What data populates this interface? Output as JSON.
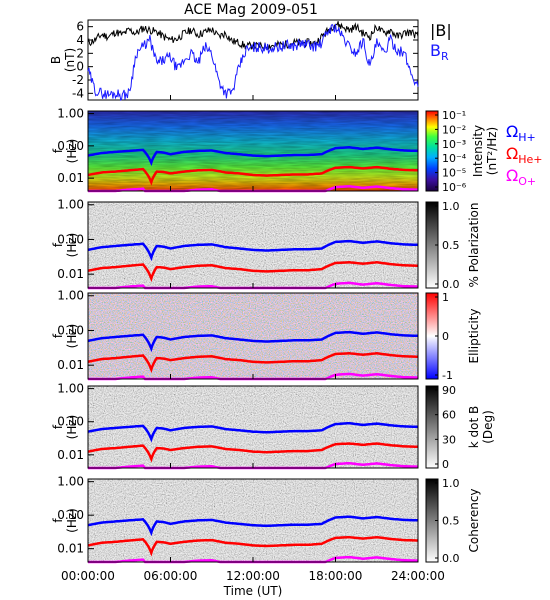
{
  "title": "ACE Mag 2009-051",
  "time_axis": {
    "label": "Time (UT)",
    "ticks": [
      "00:00:00",
      "06:00:00",
      "12:00:00",
      "18:00:00",
      "24:00:00"
    ]
  },
  "colors": {
    "B_total": "#000000",
    "B_R": "#1a1aff",
    "H_plus": "#0000ff",
    "He_plus": "#ff0000",
    "O_plus": "#ff00ff"
  },
  "chart_data": [
    {
      "type": "line",
      "panel": "B",
      "ylabel": "B",
      "yunit": "(nT)",
      "ylim": [
        -5,
        7
      ],
      "yticks": [
        "6",
        "4",
        "2",
        "0",
        "-2",
        "-4"
      ],
      "xlim_hours": [
        0,
        24
      ],
      "legend": [
        "|B|",
        "B_R"
      ],
      "series": [
        {
          "name": "|B|",
          "x": [
            0,
            0.5,
            1,
            1.5,
            2,
            2.5,
            3,
            3.5,
            4,
            4.5,
            5,
            5.5,
            6,
            6.5,
            7,
            7.5,
            8,
            8.5,
            9,
            9.5,
            10,
            10.5,
            11,
            11.5,
            12,
            12.5,
            13,
            13.5,
            14,
            14.5,
            15,
            15.5,
            16,
            16.5,
            17,
            17.5,
            18,
            18.5,
            19,
            19.5,
            20,
            20.5,
            21,
            21.5,
            22,
            22.5,
            23,
            23.5,
            24
          ],
          "values": [
            3.5,
            4.0,
            4.8,
            4.5,
            5.2,
            4.8,
            5.5,
            5.0,
            5.8,
            5.5,
            5.2,
            4.5,
            4.0,
            4.2,
            5.0,
            5.5,
            4.8,
            5.2,
            5.6,
            4.5,
            5.0,
            3.8,
            3.6,
            3.0,
            3.2,
            3.0,
            3.1,
            3.2,
            3.3,
            3.4,
            3.6,
            3.5,
            3.6,
            3.5,
            4.5,
            5.5,
            6.5,
            6.0,
            5.5,
            6.0,
            5.0,
            4.5,
            6.0,
            5.0,
            5.5,
            4.5,
            5.0,
            5.2,
            4.5
          ]
        },
        {
          "name": "B_R",
          "x": [
            0,
            0.5,
            1,
            1.5,
            2,
            2.5,
            3,
            3.5,
            4,
            4.5,
            5,
            5.5,
            6,
            6.5,
            7,
            7.5,
            8,
            8.5,
            9,
            9.5,
            10,
            10.5,
            11,
            11.5,
            12,
            12.5,
            13,
            13.5,
            14,
            14.5,
            15,
            15.5,
            16,
            16.5,
            17,
            17.5,
            18,
            18.5,
            19,
            19.5,
            20,
            20.5,
            21,
            21.5,
            22,
            22.5,
            23,
            23.5,
            24
          ],
          "values": [
            -0.5,
            -3.5,
            -4.0,
            -4.2,
            -4.0,
            -4.3,
            -4.0,
            2.0,
            3.0,
            4.0,
            0.5,
            1.0,
            1.5,
            -0.5,
            1.0,
            2.0,
            0.5,
            3.0,
            2.0,
            -2.0,
            -4.0,
            -3.8,
            0.0,
            2.5,
            2.8,
            3.0,
            2.7,
            2.9,
            3.0,
            3.2,
            3.1,
            3.5,
            3.3,
            3.0,
            3.5,
            5.5,
            6.0,
            4.5,
            3.0,
            2.0,
            4.0,
            0.0,
            3.5,
            2.0,
            4.0,
            2.5,
            2.0,
            -1.0,
            -3.0
          ]
        }
      ]
    },
    {
      "type": "heatmap",
      "panel": "intensity",
      "ylabel": "f",
      "yunit": "(Hz)",
      "yscale": "log",
      "ylim": [
        0.004,
        1.0
      ],
      "yticks": [
        "1.00",
        "0.10",
        "0.01"
      ],
      "colorbar": {
        "label": "Intensity",
        "unit": "(nT²/Hz)",
        "scale": "log",
        "ticks": [
          "10⁻¹",
          "10⁻²",
          "10⁻³",
          "10⁻⁴",
          "10⁻⁵",
          "10⁻⁶"
        ],
        "colors": [
          "#1a0040",
          "#3b0fa0",
          "#0040ff",
          "#00b0ff",
          "#00e0a0",
          "#40ff40",
          "#ffff00",
          "#ff8000",
          "#ff0000"
        ]
      },
      "overlay_labels": [
        {
          "symbol": "Ω",
          "sub": "H+",
          "color": "#0000ff"
        },
        {
          "symbol": "Ω",
          "sub": "He+",
          "color": "#ff0000"
        },
        {
          "symbol": "Ω",
          "sub": "O+",
          "color": "#ff00ff"
        }
      ]
    },
    {
      "type": "heatmap",
      "panel": "polarization",
      "ylabel": "f",
      "yunit": "(Hz)",
      "yscale": "log",
      "yticks": [
        "1.00",
        "0.10",
        "0.01"
      ],
      "colorbar": {
        "label": "% Polarization",
        "ticks": [
          "1.0",
          "0.5",
          "0.0"
        ],
        "colors": [
          "#ffffff",
          "#000000"
        ]
      }
    },
    {
      "type": "heatmap",
      "panel": "ellipticity",
      "ylabel": "f",
      "yunit": "(Hz)",
      "yscale": "log",
      "yticks": [
        "1.00",
        "0.10",
        "0.01"
      ],
      "colorbar": {
        "label": "Ellipticity",
        "ticks": [
          "1",
          "0",
          "-1"
        ],
        "colors": [
          "#0000ff",
          "#ffffff",
          "#ff0000"
        ]
      }
    },
    {
      "type": "heatmap",
      "panel": "k_dot_B",
      "ylabel": "f",
      "yunit": "(Hz)",
      "yscale": "log",
      "yticks": [
        "1.00",
        "0.10",
        "0.01"
      ],
      "colorbar": {
        "label": "k dot B",
        "unit": "(Deg)",
        "ticks": [
          "90",
          "60",
          "30",
          "0"
        ],
        "colors": [
          "#ffffff",
          "#000000"
        ]
      }
    },
    {
      "type": "heatmap",
      "panel": "coherency",
      "ylabel": "f",
      "yunit": "(Hz)",
      "yscale": "log",
      "yticks": [
        "1.00",
        "0.10",
        "0.01"
      ],
      "colorbar": {
        "label": "Coherency",
        "ticks": [
          "1.0",
          "0.5",
          "0.0"
        ],
        "colors": [
          "#ffffff",
          "#000000"
        ]
      }
    },
    {
      "type": "line",
      "panel": "gyrofrequencies",
      "description_of": "gyrofrequency overlays drawn on every spectral panel",
      "yscale": "log",
      "xlim_hours": [
        0,
        24
      ],
      "series": [
        {
          "name": "ΩH+",
          "x": [
            0,
            1,
            2,
            3,
            4,
            4.6,
            5,
            5.5,
            6,
            6.5,
            7,
            8,
            9,
            10,
            11,
            12,
            13,
            14,
            15,
            16,
            17,
            18,
            19,
            20,
            21,
            22,
            23,
            24
          ],
          "values": [
            0.05,
            0.06,
            0.065,
            0.07,
            0.075,
            0.03,
            0.065,
            0.062,
            0.055,
            0.06,
            0.065,
            0.07,
            0.072,
            0.06,
            0.055,
            0.05,
            0.048,
            0.05,
            0.052,
            0.052,
            0.055,
            0.085,
            0.09,
            0.08,
            0.088,
            0.078,
            0.072,
            0.07
          ]
        },
        {
          "name": "ΩHe+",
          "x": [
            0,
            1,
            2,
            3,
            4,
            4.6,
            5,
            5.5,
            6,
            6.5,
            7,
            8,
            9,
            10,
            11,
            12,
            13,
            14,
            15,
            16,
            17,
            18,
            19,
            20,
            21,
            22,
            23,
            24
          ],
          "values": [
            0.0125,
            0.015,
            0.016,
            0.0175,
            0.019,
            0.0075,
            0.016,
            0.0155,
            0.014,
            0.015,
            0.016,
            0.0175,
            0.018,
            0.015,
            0.014,
            0.0125,
            0.012,
            0.0125,
            0.013,
            0.013,
            0.014,
            0.021,
            0.022,
            0.02,
            0.022,
            0.0195,
            0.018,
            0.0175
          ]
        },
        {
          "name": "ΩO+",
          "x": [
            0,
            1,
            2,
            3,
            4,
            4.6,
            5,
            5.5,
            6,
            6.5,
            7,
            8,
            9,
            10,
            11,
            12,
            13,
            14,
            15,
            16,
            17,
            18,
            19,
            20,
            21,
            22,
            23,
            24
          ],
          "values": [
            0.0031,
            0.0037,
            0.004,
            0.0044,
            0.0047,
            0.0019,
            0.004,
            0.0039,
            0.0035,
            0.0037,
            0.004,
            0.0044,
            0.0045,
            0.0037,
            0.0035,
            0.0031,
            0.003,
            0.0031,
            0.0032,
            0.0032,
            0.0035,
            0.0053,
            0.0056,
            0.005,
            0.0055,
            0.0049,
            0.0045,
            0.0044
          ]
        }
      ]
    }
  ]
}
